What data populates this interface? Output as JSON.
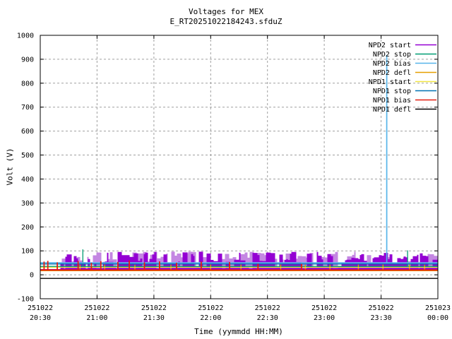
{
  "chart_data": {
    "type": "line",
    "title": "Voltages for MEX",
    "subtitle": "E_RT20251022184243.sfduZ",
    "xlabel": "Time (yymmdd HH:MM)",
    "ylabel": "Volt (V)",
    "ylim": [
      -100,
      1000
    ],
    "yticks": [
      -100,
      0,
      100,
      200,
      300,
      400,
      500,
      600,
      700,
      800,
      900,
      1000
    ],
    "x_total_minutes": 210,
    "xticks": [
      {
        "date": "251022",
        "time": "20:30",
        "min": 0
      },
      {
        "date": "251022",
        "time": "21:00",
        "min": 30
      },
      {
        "date": "251022",
        "time": "21:30",
        "min": 60
      },
      {
        "date": "251022",
        "time": "22:00",
        "min": 90
      },
      {
        "date": "251022",
        "time": "22:30",
        "min": 120
      },
      {
        "date": "251022",
        "time": "23:00",
        "min": 150
      },
      {
        "date": "251022",
        "time": "23:30",
        "min": 180
      },
      {
        "date": "251023",
        "time": "00:00",
        "min": 210
      }
    ],
    "grid": true,
    "legend_position": "top-right-inside",
    "series": [
      {
        "name": "NPD2 start",
        "color": "#9400D3",
        "kind": "noise_band",
        "band": {
          "start_min": 11,
          "end_min": 210,
          "base": 22,
          "top_min": 26,
          "top_max": 97
        },
        "baseline": 22
      },
      {
        "name": "NPD2 stop",
        "color": "#009E73",
        "kind": "flat_with_spikes",
        "value": 35,
        "spikes": [
          {
            "min": 22.5,
            "peak": 106
          },
          {
            "min": 194,
            "peak": 102
          }
        ]
      },
      {
        "name": "NPD2 bias",
        "color": "#56B4E9",
        "kind": "flat_with_spikes",
        "value": 50,
        "spikes": [
          {
            "min": 183,
            "peak": 918
          }
        ]
      },
      {
        "name": "NPD2 defl",
        "color": "#E69F00",
        "kind": "flat_with_spikes",
        "value": 17,
        "spikes": [
          {
            "min": 21,
            "peak": 46
          },
          {
            "min": 34,
            "peak": 44
          },
          {
            "min": 50,
            "peak": 42
          },
          {
            "min": 63,
            "peak": 45
          },
          {
            "min": 69,
            "peak": 44
          },
          {
            "min": 90,
            "peak": 43
          },
          {
            "min": 106,
            "peak": 46
          },
          {
            "min": 127,
            "peak": 44
          },
          {
            "min": 140,
            "peak": 42
          },
          {
            "min": 153,
            "peak": 45
          },
          {
            "min": 168,
            "peak": 43
          },
          {
            "min": 181,
            "peak": 46
          },
          {
            "min": 195,
            "peak": 44
          },
          {
            "min": 203,
            "peak": 42
          }
        ]
      },
      {
        "name": "NPD1 start",
        "color": "#F0E442",
        "kind": "flat",
        "value": 31
      },
      {
        "name": "NPD1 stop",
        "color": "#0072B2",
        "kind": "flat",
        "value": 45
      },
      {
        "name": "NPD1 bias",
        "color": "#E51E10",
        "kind": "flat_with_spikes",
        "value": 20,
        "spikes": [
          {
            "min": 2,
            "peak": 55
          },
          {
            "min": 4,
            "peak": 58
          },
          {
            "min": 9,
            "peak": 52
          },
          {
            "min": 20,
            "peak": 58
          },
          {
            "min": 27,
            "peak": 50
          },
          {
            "min": 32,
            "peak": 57
          },
          {
            "min": 41,
            "peak": 54
          },
          {
            "min": 47,
            "peak": 60
          },
          {
            "min": 55,
            "peak": 52
          },
          {
            "min": 63,
            "peak": 56
          },
          {
            "min": 72,
            "peak": 50
          },
          {
            "min": 85,
            "peak": 55
          },
          {
            "min": 100,
            "peak": 53
          },
          {
            "min": 115,
            "peak": 46
          },
          {
            "min": 138,
            "peak": 45
          }
        ]
      },
      {
        "name": "NPD1 defl",
        "color": "#000000",
        "kind": "flat",
        "value": -15
      }
    ]
  }
}
